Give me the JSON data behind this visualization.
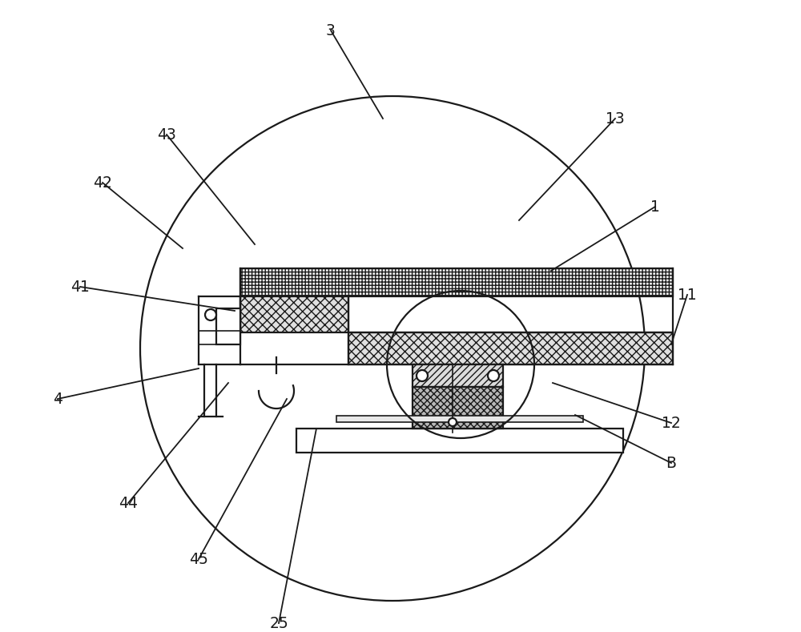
{
  "bg_color": "#ffffff",
  "line_color": "#1a1a1a",
  "fig_width": 10.0,
  "fig_height": 7.89,
  "dpi": 100,
  "annotations": [
    [
      "3",
      413,
      38,
      478,
      148
    ],
    [
      "43",
      208,
      168,
      318,
      305
    ],
    [
      "42",
      128,
      228,
      228,
      310
    ],
    [
      "41",
      100,
      358,
      293,
      388
    ],
    [
      "4",
      72,
      498,
      248,
      460
    ],
    [
      "44",
      160,
      628,
      285,
      478
    ],
    [
      "45",
      248,
      698,
      358,
      498
    ],
    [
      "25",
      348,
      778,
      395,
      535
    ],
    [
      "13",
      768,
      148,
      648,
      275
    ],
    [
      "1",
      818,
      258,
      688,
      338
    ],
    [
      "11",
      858,
      368,
      838,
      430
    ],
    [
      "12",
      838,
      528,
      690,
      478
    ],
    [
      "B",
      838,
      578,
      718,
      518
    ]
  ]
}
